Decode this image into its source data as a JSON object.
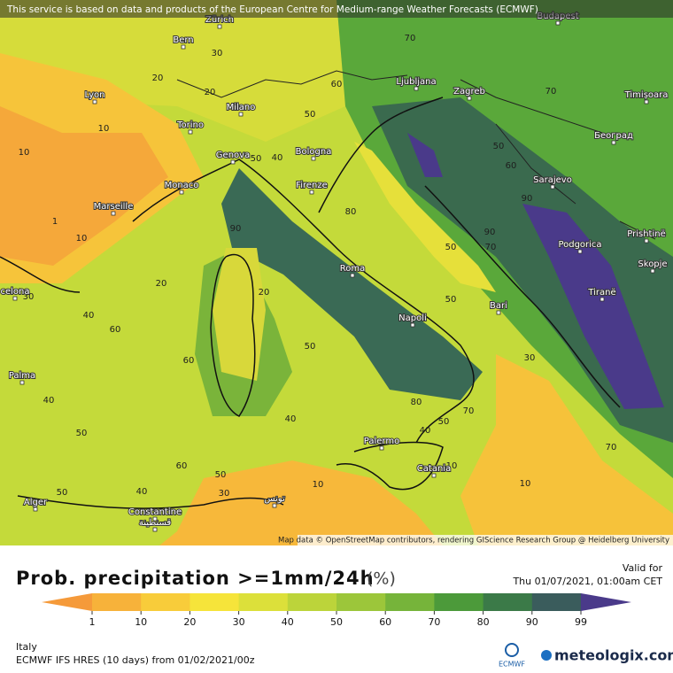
{
  "header": {
    "attribution": "This service is based on data and products of the European Centre for Medium-range Weather Forecasts (ECMWF)"
  },
  "map": {
    "cities": [
      "Budapest",
      "Zürich",
      "Bern",
      "Ljubljana",
      "Zagreb",
      "Timișoara",
      "Lyon",
      "Milano",
      "Torino",
      "Београд",
      "Genova",
      "Bologna",
      "Monaco",
      "Marseille",
      "Firenze",
      "Sarajevo",
      "Prishtinë",
      "Podgorica",
      "Skopje",
      "Roma",
      "Tiranë",
      "Bari",
      "Napoli",
      "celona",
      "Palma",
      "Palermo",
      "Catania",
      "Alger",
      "Constantine",
      "قسنطينة",
      "تونس"
    ],
    "contour_labels": [
      "70",
      "30",
      "20",
      "20",
      "10",
      "50",
      "60",
      "70",
      "10",
      "1",
      "10",
      "40",
      "50",
      "80",
      "90",
      "90",
      "50",
      "70",
      "20",
      "20",
      "50",
      "30",
      "40",
      "60",
      "50",
      "60",
      "30",
      "40",
      "80",
      "40",
      "70",
      "50",
      "40",
      "50",
      "70",
      "60",
      "10",
      "40",
      "50",
      "50",
      "30",
      "10",
      "10",
      "50",
      "60",
      "90"
    ],
    "credits": "Map data © OpenStreetMap contributors, rendering GIScience Research Group @ Heidelberg University"
  },
  "legend": {
    "title": "Prob. precipitation >=1mm/24h",
    "unit": "(%)",
    "valid_label": "Valid for",
    "valid_time": "Thu 01/07/2021, 01:00am CET",
    "ticks": [
      "1",
      "10",
      "20",
      "30",
      "40",
      "50",
      "60",
      "70",
      "80",
      "90",
      "99"
    ],
    "colors": [
      "#f59a3a",
      "#f7b23a",
      "#f8cc3a",
      "#f6e43a",
      "#dce03a",
      "#bcd43a",
      "#9cc63a",
      "#76b43a",
      "#4c9a3a",
      "#3b7a48",
      "#3a5c5c",
      "#4a3a8a"
    ]
  },
  "footer": {
    "region": "Italy",
    "model": "ECMWF IFS HRES (10 days) from 01/02/2021/00z",
    "ecmwf_logo": "ECMWF",
    "brand": "meteologix.com"
  }
}
